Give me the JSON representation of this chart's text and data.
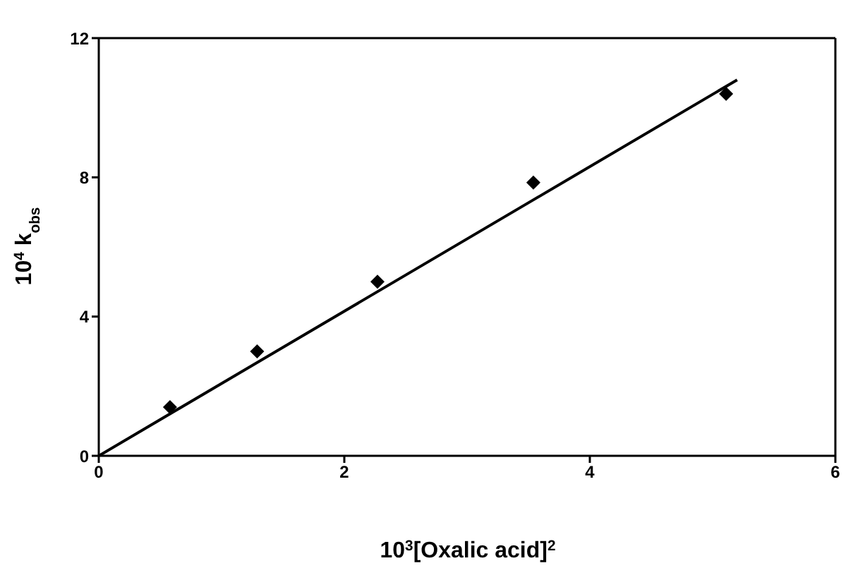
{
  "chart_data": {
    "type": "scatter",
    "xlabel": "10$^{3}$[Oxalic acid]$^{2}$",
    "ylabel": "10$^{4}$ k$_{obs}$",
    "series": [
      {
        "color": "#000000",
        "marker": "diamond",
        "x": [
          0.58,
          1.29,
          2.27,
          3.54,
          5.11
        ],
        "values": [
          1.4,
          3.0,
          5.0,
          7.85,
          10.4
        ]
      },
      {
        "type": "line",
        "color": "#000000",
        "marker": "none",
        "line_style": "solid",
        "x": [
          0,
          5.2
        ],
        "values": [
          0,
          10.8
        ]
      }
    ],
    "xlim": [
      0,
      6
    ],
    "xticks": [
      0,
      2,
      4,
      6
    ],
    "ylim": [
      0,
      12
    ],
    "yticks": [
      0,
      4,
      8,
      12
    ],
    "legend": false
  }
}
